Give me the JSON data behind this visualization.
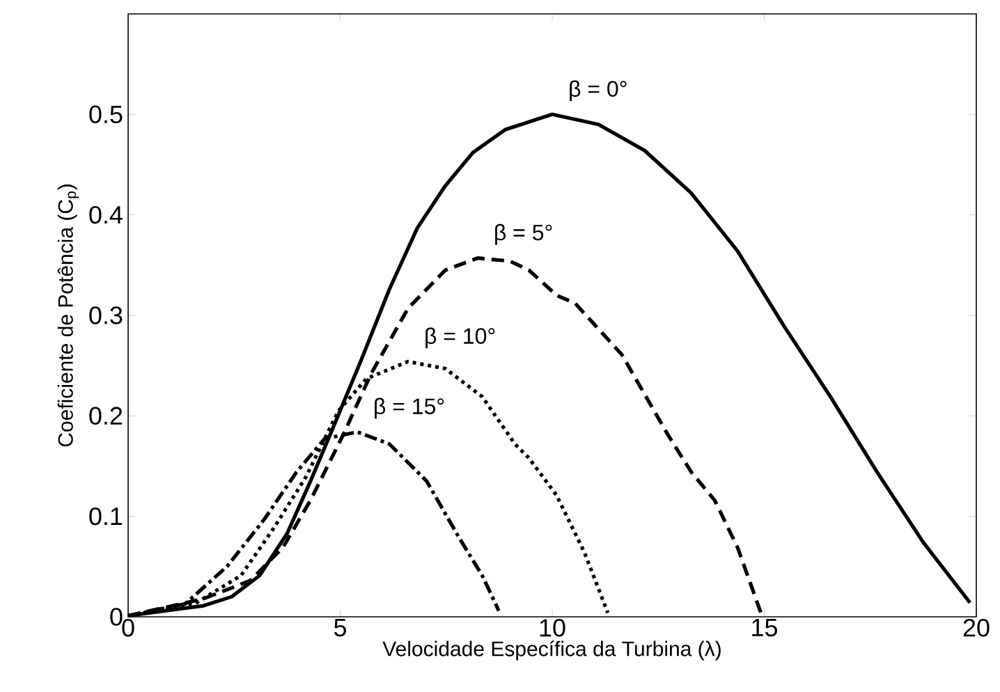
{
  "chart_data": {
    "type": "line",
    "xlabel": "Velocidade Específica da Turbina (λ)",
    "ylabel": "Coeficiente de Potência (C$_{p}$)",
    "xlim": [
      0,
      20
    ],
    "ylim": [
      0,
      0.6
    ],
    "xticks": [
      0,
      5,
      10,
      15,
      20
    ],
    "yticks": [
      0,
      0.1,
      0.2,
      0.3,
      0.4,
      0.5
    ],
    "grid": false,
    "legend": false,
    "series": [
      {
        "name": "β = 0°",
        "color": "#000000",
        "line_style": "solid",
        "x": [
          0,
          1.78,
          2.44,
          3.1,
          3.75,
          4.3,
          4.85,
          5.5,
          6.16,
          6.82,
          7.48,
          8.13,
          8.9,
          10,
          11.09,
          12.18,
          13.27,
          14.37,
          15.47,
          16.56,
          17.66,
          18.75,
          19.85
        ],
        "values": [
          0.001,
          0.011,
          0.02,
          0.041,
          0.083,
          0.135,
          0.19,
          0.256,
          0.326,
          0.387,
          0.429,
          0.462,
          0.485,
          0.5,
          0.49,
          0.464,
          0.422,
          0.364,
          0.289,
          0.219,
          0.144,
          0.074,
          0.014
        ]
      },
      {
        "name": "β = 5°",
        "color": "#000000",
        "line_style": "dashed",
        "x": [
          0,
          1.78,
          2.88,
          3.65,
          4.3,
          5.07,
          5.73,
          6.6,
          7.48,
          8.24,
          9.0,
          9.45,
          10.1,
          10.54,
          11.64,
          12.73,
          13.28,
          13.83,
          14.37,
          14.92
        ],
        "values": [
          0.001,
          0.018,
          0.036,
          0.069,
          0.116,
          0.181,
          0.242,
          0.307,
          0.345,
          0.357,
          0.354,
          0.345,
          0.32,
          0.312,
          0.261,
          0.181,
          0.144,
          0.116,
          0.069,
          0.004
        ]
      },
      {
        "name": "β = 10°",
        "color": "#000000",
        "line_style": "dotted",
        "x": [
          0,
          1.57,
          2.66,
          3.43,
          4.19,
          4.96,
          5.62,
          6.6,
          7.48,
          8.35,
          9.12,
          9.45,
          10.1,
          10.76,
          11.31
        ],
        "values": [
          0.001,
          0.013,
          0.041,
          0.088,
          0.139,
          0.205,
          0.237,
          0.254,
          0.247,
          0.219,
          0.172,
          0.158,
          0.121,
          0.064,
          0.004
        ]
      },
      {
        "name": "β = 15°",
        "color": "#000000",
        "line_style": "dashdot",
        "x": [
          0,
          1.35,
          2.33,
          3.21,
          3.97,
          4.63,
          5.4,
          6.16,
          7.04,
          7.8,
          8.35,
          8.74
        ],
        "values": [
          0.001,
          0.013,
          0.05,
          0.097,
          0.144,
          0.177,
          0.184,
          0.172,
          0.135,
          0.079,
          0.041,
          0.006
        ]
      }
    ]
  }
}
